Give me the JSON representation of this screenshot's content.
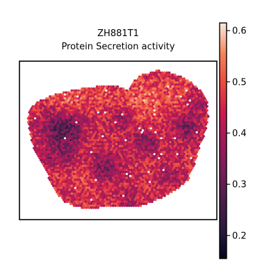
{
  "chart_data": {
    "type": "heatmap",
    "subtype": "spatial-hexbin",
    "title": "ZH881T1",
    "subtitle": "Protein Secretion activity",
    "colormap": "rocket",
    "colorbar": {
      "range": [
        0.155,
        0.615
      ],
      "ticks": [
        0.2,
        0.3,
        0.4,
        0.5,
        0.6
      ],
      "tick_labels": [
        "0.2",
        "0.3",
        "0.4",
        "0.5",
        "0.6"
      ]
    },
    "value_distribution": {
      "typical": 0.45,
      "min": 0.16,
      "max": 0.61
    },
    "axes_visible": false,
    "grid": false
  }
}
